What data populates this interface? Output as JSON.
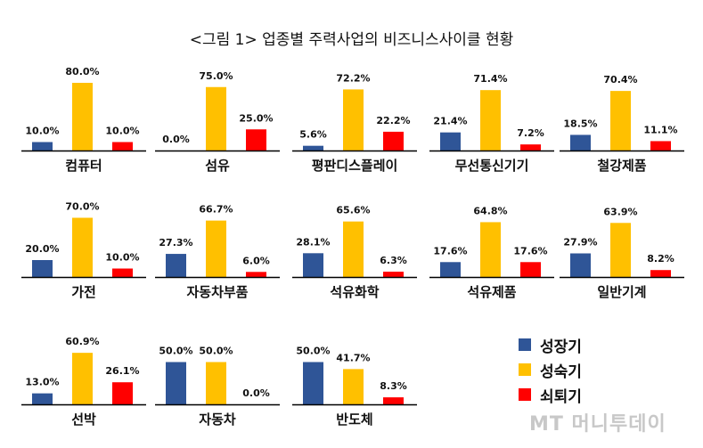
{
  "title": "<그림 1> 업종별 주력사업의 비즈니스사이클 현황",
  "legend": [
    {
      "label": "성장기",
      "color": "#2f5597"
    },
    {
      "label": "성숙기",
      "color": "#ffc000"
    },
    {
      "label": "쇠퇴기",
      "color": "#ff0000"
    }
  ],
  "watermark": "MT 머니투데이",
  "chart_data": {
    "type": "bar",
    "title": "<그림 1> 업종별 주력사업의 비즈니스사이클 현황",
    "series_names": [
      "성장기",
      "성숙기",
      "쇠퇴기"
    ],
    "colors": [
      "#2f5597",
      "#ffc000",
      "#ff0000"
    ],
    "ylim": [
      0,
      100
    ],
    "panels": [
      {
        "category": "컴퓨터",
        "values": [
          10.0,
          80.0,
          10.0
        ],
        "labels": [
          "10.0%",
          "80.0%",
          "10.0%"
        ]
      },
      {
        "category": "섬유",
        "values": [
          0.0,
          75.0,
          25.0
        ],
        "labels": [
          "0.0%",
          "75.0%",
          "25.0%"
        ]
      },
      {
        "category": "평판디스플레이",
        "values": [
          5.6,
          72.2,
          22.2
        ],
        "labels": [
          "5.6%",
          "72.2%",
          "22.2%"
        ]
      },
      {
        "category": "무선통신기기",
        "values": [
          21.4,
          71.4,
          7.2
        ],
        "labels": [
          "21.4%",
          "71.4%",
          "7.2%"
        ]
      },
      {
        "category": "철강제품",
        "values": [
          18.5,
          70.4,
          11.1
        ],
        "labels": [
          "18.5%",
          "70.4%",
          "11.1%"
        ]
      },
      {
        "category": "가전",
        "values": [
          20.0,
          70.0,
          10.0
        ],
        "labels": [
          "20.0%",
          "70.0%",
          "10.0%"
        ]
      },
      {
        "category": "자동차부품",
        "values": [
          27.3,
          66.7,
          6.0
        ],
        "labels": [
          "27.3%",
          "66.7%",
          "6.0%"
        ]
      },
      {
        "category": "석유화학",
        "values": [
          28.1,
          65.6,
          6.3
        ],
        "labels": [
          "28.1%",
          "65.6%",
          "6.3%"
        ]
      },
      {
        "category": "석유제품",
        "values": [
          17.6,
          64.8,
          17.6
        ],
        "labels": [
          "17.6%",
          "64.8%",
          "17.6%"
        ]
      },
      {
        "category": "일반기계",
        "values": [
          27.9,
          63.9,
          8.2
        ],
        "labels": [
          "27.9%",
          "63.9%",
          "8.2%"
        ]
      },
      {
        "category": "선박",
        "values": [
          13.0,
          60.9,
          26.1
        ],
        "labels": [
          "13.0%",
          "60.9%",
          "26.1%"
        ]
      },
      {
        "category": "자동차",
        "values": [
          50.0,
          50.0,
          0.0
        ],
        "labels": [
          "50.0%",
          "50.0%",
          "0.0%"
        ]
      },
      {
        "category": "반도체",
        "values": [
          50.0,
          41.7,
          8.3
        ],
        "labels": [
          "50.0%",
          "41.7%",
          "8.3%"
        ]
      }
    ]
  }
}
